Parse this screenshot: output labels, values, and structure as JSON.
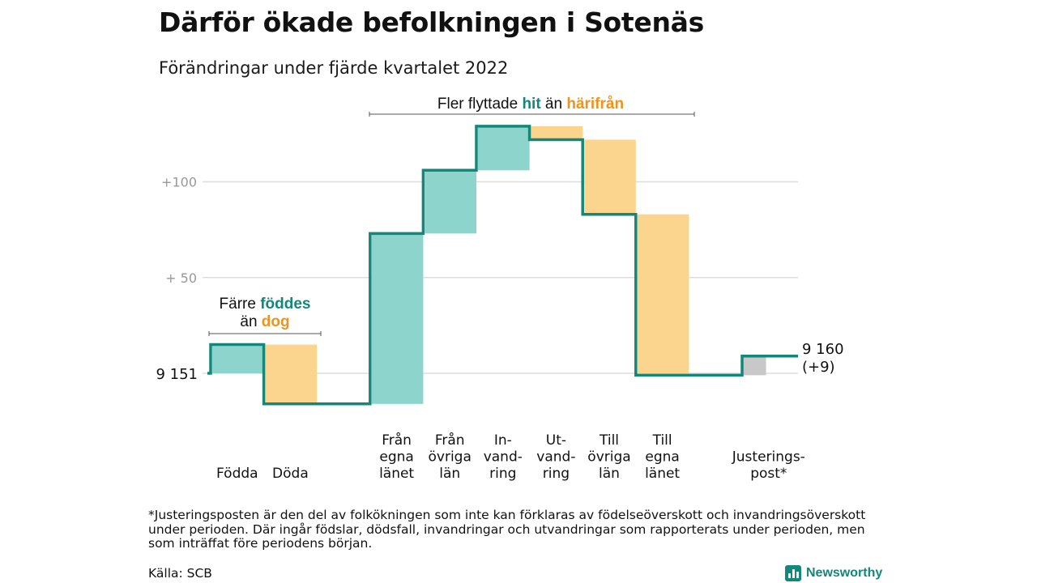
{
  "title": "Därför ökade befolkningen i Sotenäs",
  "subtitle": "Förändringar under fjärde kvartalet 2022",
  "colors": {
    "teal": "#12877a",
    "teal_fill": "#8dd5cc",
    "orange": "#f0921d",
    "orange_fill": "#fbd58e",
    "gray_fill": "#c8c8c8",
    "grid": "#dddddd",
    "tick_text": "#999999"
  },
  "chart_data": {
    "type": "waterfall",
    "baseline": 9151,
    "y_ticks": [
      {
        "value": 100,
        "label": "+100"
      },
      {
        "value": 50,
        "label": "+ 50"
      }
    ],
    "start_label": "9 151",
    "end_label": [
      "9 160",
      "(+9)"
    ],
    "ylim": [
      -20,
      130
    ],
    "steps": [
      {
        "label": [
          "Födda"
        ],
        "change": 15,
        "kind": "in"
      },
      {
        "label": [
          "Döda"
        ],
        "change": -31,
        "kind": "out"
      },
      {
        "label": [],
        "change": 0,
        "kind": "gap"
      },
      {
        "label": [
          "Från",
          "egna",
          "länet"
        ],
        "change": 89,
        "kind": "in"
      },
      {
        "label": [
          "Från",
          "övriga",
          "län"
        ],
        "change": 33,
        "kind": "in"
      },
      {
        "label": [
          "In-",
          "vand-",
          "ring"
        ],
        "change": 23,
        "kind": "in"
      },
      {
        "label": [
          "Ut-",
          "vand-",
          "ring"
        ],
        "change": -7,
        "kind": "out"
      },
      {
        "label": [
          "Till",
          "övriga",
          "län"
        ],
        "change": -39,
        "kind": "out"
      },
      {
        "label": [
          "Till",
          "egna",
          "länet"
        ],
        "change": -84,
        "kind": "out"
      },
      {
        "label": [],
        "change": 0,
        "kind": "gap"
      },
      {
        "label": [
          "Justerings-",
          "post*"
        ],
        "change": 10,
        "kind": "adjust"
      }
    ],
    "annotations": [
      {
        "id": "births",
        "lines": [
          [
            {
              "text": "Färre ",
              "style": "plain"
            },
            {
              "text": "föddes",
              "style": "teal"
            }
          ],
          [
            {
              "text": "än ",
              "style": "plain"
            },
            {
              "text": "dog",
              "style": "orange"
            }
          ]
        ]
      },
      {
        "id": "moves",
        "lines": [
          [
            {
              "text": "Fler flyttade ",
              "style": "plain"
            },
            {
              "text": "hit",
              "style": "teal"
            },
            {
              "text": " än ",
              "style": "plain"
            },
            {
              "text": "härifrån",
              "style": "orange"
            }
          ]
        ]
      }
    ]
  },
  "footnote": "*Justeringsposten är den del av folkökningen som inte kan förklaras av födelseöverskott och invandringsöverskott under perioden. Där ingår födslar, dödsfall, invandringar och utvandringar som rapporterats under perioden, men som inträffat före periodens början.",
  "source": "Källa: SCB",
  "logo": {
    "name": "Newsworthy"
  }
}
